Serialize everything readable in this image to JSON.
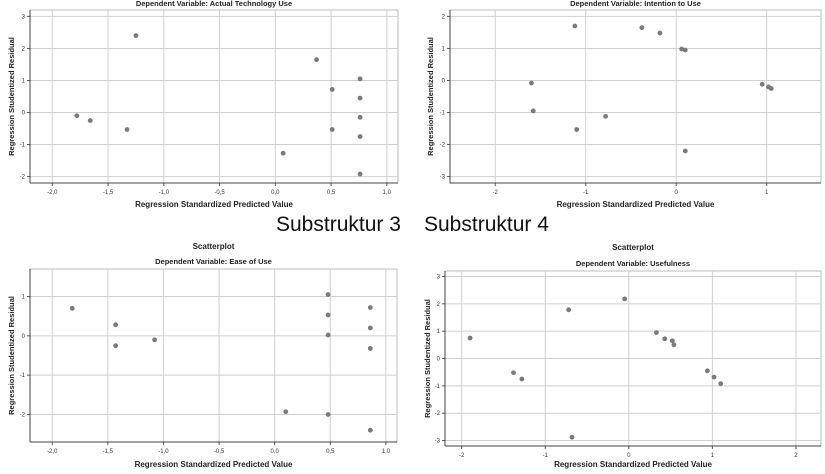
{
  "labels": {
    "left": "Substruktur 3",
    "right": "Substruktur 4"
  },
  "chart_data": [
    {
      "type": "scatter",
      "title": "",
      "subtitle": "Dependent Variable: Actual Technology Use",
      "xlabel": "Regression Standardized Predicted Value",
      "ylabel": "Regression Studentized Residual",
      "xlim": [
        -2.2,
        1.1
      ],
      "ylim": [
        -2.2,
        3.2
      ],
      "xticks": [
        -2.0,
        -1.5,
        -1.0,
        -0.5,
        0.0,
        0.5,
        1.0
      ],
      "xtick_labels": [
        "-2,0",
        "-1,5",
        "-1,0",
        "-0,5",
        "0,0",
        "0,5",
        "1,0"
      ],
      "yticks": [
        -2,
        -1,
        0,
        1,
        2,
        3
      ],
      "ytick_labels": [
        "-2",
        "-1",
        "0",
        "1",
        "2",
        "3"
      ],
      "grid": true,
      "color": "#7a7a7a",
      "points": [
        {
          "x": -1.78,
          "y": -0.1
        },
        {
          "x": -1.66,
          "y": -0.25
        },
        {
          "x": -1.33,
          "y": -0.53
        },
        {
          "x": -1.25,
          "y": 2.4
        },
        {
          "x": 0.07,
          "y": -1.27
        },
        {
          "x": 0.37,
          "y": 1.65
        },
        {
          "x": 0.51,
          "y": 0.72
        },
        {
          "x": 0.51,
          "y": -0.53
        },
        {
          "x": 0.76,
          "y": 1.05
        },
        {
          "x": 0.76,
          "y": 0.45
        },
        {
          "x": 0.76,
          "y": -0.15
        },
        {
          "x": 0.76,
          "y": -0.75
        },
        {
          "x": 0.76,
          "y": -1.92
        }
      ]
    },
    {
      "type": "scatter",
      "title": "",
      "subtitle": "Dependent Variable: Intention to Use",
      "xlabel": "Regression Standardized Predicted Value",
      "ylabel": "Regression Studentized Residual",
      "xlim": [
        -2.5,
        1.6
      ],
      "ylim": [
        -3.2,
        2.2
      ],
      "xticks": [
        -2,
        -1,
        0,
        1
      ],
      "xtick_labels": [
        "-2",
        "-1",
        "0",
        "1"
      ],
      "yticks": [
        -3,
        -2,
        -1,
        0,
        1,
        2
      ],
      "ytick_labels": [
        "-3",
        "-2",
        "-1",
        "0",
        "1",
        "2"
      ],
      "grid": true,
      "color": "#7a7a7a",
      "points": [
        {
          "x": -1.6,
          "y": -0.08
        },
        {
          "x": -1.58,
          "y": -0.95
        },
        {
          "x": -1.12,
          "y": 1.7
        },
        {
          "x": -1.1,
          "y": -1.53
        },
        {
          "x": -0.78,
          "y": -1.12
        },
        {
          "x": -0.38,
          "y": 1.65
        },
        {
          "x": -0.18,
          "y": 1.48
        },
        {
          "x": 0.06,
          "y": 0.98
        },
        {
          "x": 0.1,
          "y": 0.95
        },
        {
          "x": 0.1,
          "y": -2.2
        },
        {
          "x": 0.95,
          "y": -0.12
        },
        {
          "x": 1.02,
          "y": -0.2
        },
        {
          "x": 1.05,
          "y": -0.25
        }
      ]
    },
    {
      "type": "scatter",
      "title": "Scatterplot",
      "subtitle": "Dependent Variable: Ease of Use",
      "xlabel": "Regression Standardized Predicted Value",
      "ylabel": "Regression Studentized Residual",
      "xlim": [
        -2.2,
        1.1
      ],
      "ylim": [
        -2.7,
        1.7
      ],
      "xticks": [
        -2.0,
        -1.5,
        -1.0,
        -0.5,
        0.0,
        0.5,
        1.0
      ],
      "xtick_labels": [
        "-2,0",
        "-1,5",
        "-1,0",
        "-0,5",
        "0,0",
        "0,5",
        "1,0"
      ],
      "yticks": [
        -2,
        -1,
        0,
        1
      ],
      "ytick_labels": [
        "-2",
        "-1",
        "0",
        "1"
      ],
      "grid": true,
      "color": "#7a7a7a",
      "points": [
        {
          "x": -1.82,
          "y": 0.7
        },
        {
          "x": -1.43,
          "y": 0.28
        },
        {
          "x": -1.43,
          "y": -0.25
        },
        {
          "x": -1.08,
          "y": -0.1
        },
        {
          "x": 0.1,
          "y": -1.93
        },
        {
          "x": 0.48,
          "y": 1.05
        },
        {
          "x": 0.48,
          "y": 0.53
        },
        {
          "x": 0.48,
          "y": 0.02
        },
        {
          "x": 0.48,
          "y": -2.0
        },
        {
          "x": 0.86,
          "y": 0.72
        },
        {
          "x": 0.86,
          "y": 0.2
        },
        {
          "x": 0.86,
          "y": -0.32
        },
        {
          "x": 0.86,
          "y": -2.4
        }
      ]
    },
    {
      "type": "scatter",
      "title": "Scatterplot",
      "subtitle": "Dependent Variable: Usefulness",
      "xlabel": "Regression Standardized Predicted Value",
      "ylabel": "Regression Studentized Residual",
      "xlim": [
        -2.2,
        2.3
      ],
      "ylim": [
        -3.2,
        3.2
      ],
      "xticks": [
        -2,
        -1,
        0,
        1,
        2
      ],
      "xtick_labels": [
        "-2",
        "-1",
        "0",
        "1",
        "2"
      ],
      "yticks": [
        -3,
        -2,
        -1,
        0,
        1,
        2,
        3
      ],
      "ytick_labels": [
        "-3",
        "-2",
        "-1",
        "0",
        "1",
        "2",
        "3"
      ],
      "grid": true,
      "color": "#7a7a7a",
      "points": [
        {
          "x": -1.9,
          "y": 0.75
        },
        {
          "x": -1.38,
          "y": -0.52
        },
        {
          "x": -1.28,
          "y": -0.75
        },
        {
          "x": -0.72,
          "y": 1.78
        },
        {
          "x": -0.68,
          "y": -2.88
        },
        {
          "x": -0.05,
          "y": 2.18
        },
        {
          "x": 0.33,
          "y": 0.95
        },
        {
          "x": 0.43,
          "y": 0.72
        },
        {
          "x": 0.52,
          "y": 0.65
        },
        {
          "x": 0.54,
          "y": 0.5
        },
        {
          "x": 0.94,
          "y": -0.45
        },
        {
          "x": 1.02,
          "y": -0.68
        },
        {
          "x": 1.1,
          "y": -0.92
        }
      ]
    }
  ]
}
